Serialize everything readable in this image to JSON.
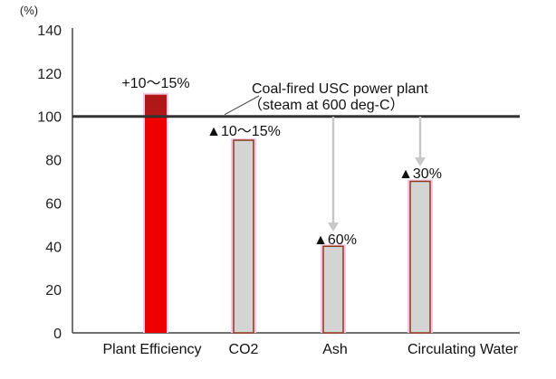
{
  "chart_data": {
    "type": "bar",
    "ylabel": "(%)",
    "ylim": [
      0,
      140
    ],
    "yticks": [
      0,
      20,
      40,
      60,
      80,
      100,
      120,
      140
    ],
    "categories": [
      "Plant Efficiency",
      "CO2",
      "Ash",
      "Circulating Water"
    ],
    "values": [
      110,
      89,
      40,
      70
    ],
    "bar_labels": [
      "+10～15%",
      "▲10～15%",
      "▲60%",
      "▲30%"
    ],
    "baseline": {
      "value": 100,
      "label_line1": "Coal-fired USC power plant",
      "label_line2": "（steam at 600 deg-C）"
    },
    "colors": {
      "efficiency_bar": "#ee0000",
      "efficiency_cap": "#b01818",
      "reduction_bar": "#d4d4d4",
      "bar_outline": "#8b3a1a",
      "bar_halo": "#f7c8e6",
      "baseline": "#333333",
      "arrow": "#c8c8c8"
    },
    "grid": false
  }
}
